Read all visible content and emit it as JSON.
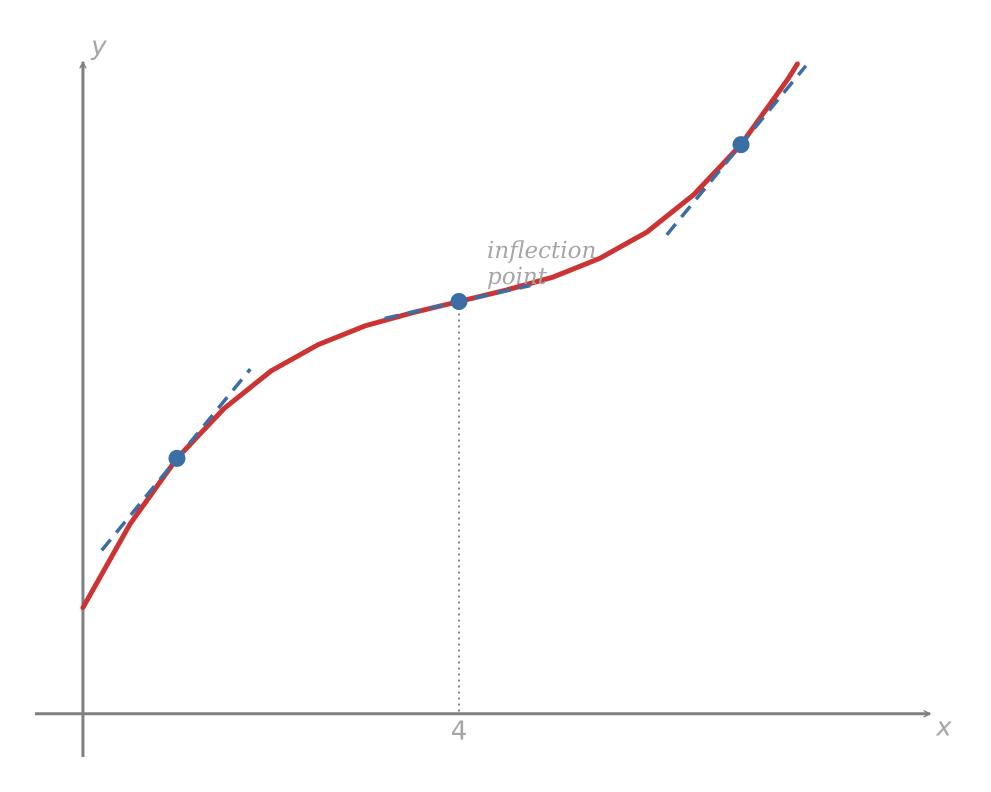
{
  "chart_data": {
    "type": "line",
    "x_label": "x",
    "y_label": "y",
    "annotation": [
      "inflection",
      "point"
    ],
    "xlim": [
      -0.51,
      9.01
    ],
    "ylim": [
      -0.46,
      6.94
    ],
    "xticks": [
      4
    ],
    "axis_color": "#808080",
    "series": [
      {
        "color": "#cc3333",
        "style": "solid",
        "x": [
          0,
          0.5,
          1,
          1.5,
          2,
          2.5,
          3,
          3.5,
          4,
          4.5,
          5,
          5.5,
          6,
          6.5,
          7,
          7.5,
          7.6
        ],
        "values": [
          1.13,
          2.02,
          2.72,
          3.25,
          3.65,
          3.93,
          4.13,
          4.27,
          4.39,
          4.51,
          4.65,
          4.85,
          5.13,
          5.53,
          6.06,
          6.76,
          6.92
        ]
      }
    ],
    "tangents": [
      {
        "color": "#3a6ea5",
        "x": [
          0.2,
          1.78
        ],
        "values": [
          1.74,
          3.67
        ]
      },
      {
        "color": "#3a6ea5",
        "x": [
          3.21,
          4.76
        ],
        "values": [
          4.21,
          4.56
        ]
      },
      {
        "color": "#3a6ea5",
        "x": [
          6.21,
          7.69
        ],
        "values": [
          5.1,
          6.9
        ]
      }
    ],
    "points": {
      "color": "#3a6ea5",
      "x": [
        1,
        4,
        7
      ],
      "values": [
        2.72,
        4.39,
        6.06
      ]
    }
  }
}
